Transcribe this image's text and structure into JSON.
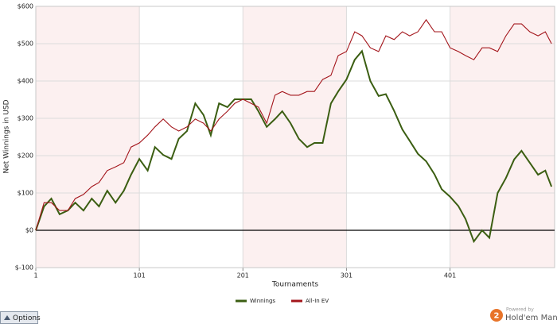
{
  "chart_data": {
    "type": "line",
    "y_label": "Net Winnings in USD",
    "x_label": "Tournaments",
    "x": [
      1,
      9,
      16,
      24,
      32,
      39,
      47,
      55,
      62,
      70,
      78,
      86,
      93,
      101,
      109,
      116,
      124,
      132,
      139,
      147,
      155,
      163,
      170,
      178,
      186,
      193,
      201,
      209,
      216,
      224,
      232,
      239,
      247,
      255,
      263,
      270,
      278,
      286,
      293,
      301,
      309,
      316,
      324,
      332,
      339,
      347,
      355,
      362,
      370,
      378,
      386,
      393,
      401,
      409,
      416,
      424,
      432,
      439,
      447,
      455,
      463,
      470,
      478,
      486,
      493,
      499
    ],
    "series": [
      {
        "name": "Winnings",
        "color": "#3b5e12",
        "values": [
          0,
          64,
          85,
          43,
          53,
          74,
          53,
          85,
          64,
          106,
          74,
          106,
          149,
          191,
          160,
          223,
          202,
          191,
          245,
          266,
          340,
          309,
          255,
          340,
          330,
          351,
          351,
          351,
          319,
          277,
          298,
          319,
          287,
          245,
          223,
          234,
          234,
          340,
          372,
          404,
          457,
          480,
          400,
          360,
          365,
          320,
          270,
          240,
          205,
          185,
          150,
          110,
          90,
          65,
          30,
          -30,
          0,
          -20,
          100,
          140,
          190,
          213,
          181,
          149,
          160,
          117
        ]
      },
      {
        "name": "All-In EV",
        "color": "#a3151b",
        "values": [
          0,
          74,
          74,
          53,
          53,
          85,
          96,
          117,
          128,
          160,
          170,
          181,
          223,
          234,
          255,
          277,
          298,
          277,
          266,
          277,
          298,
          287,
          266,
          298,
          319,
          340,
          351,
          340,
          330,
          287,
          362,
          372,
          362,
          362,
          372,
          372,
          404,
          415,
          468,
          479,
          532,
          521,
          489,
          479,
          521,
          511,
          532,
          521,
          532,
          564,
          532,
          532,
          489,
          479,
          468,
          457,
          489,
          489,
          479,
          521,
          553,
          553,
          532,
          521,
          532,
          500
        ]
      }
    ],
    "xlim": [
      1,
      502
    ],
    "ylim": [
      -100,
      600
    ],
    "xticks": [
      1,
      101,
      201,
      301,
      401
    ],
    "yticks": [
      {
        "value": -100,
        "label": "$-100"
      },
      {
        "value": 0,
        "label": "$0"
      },
      {
        "value": 100,
        "label": "$100"
      },
      {
        "value": 200,
        "label": "$200"
      },
      {
        "value": 300,
        "label": "$300"
      },
      {
        "value": 400,
        "label": "$400"
      },
      {
        "value": 500,
        "label": "$500"
      },
      {
        "value": 600,
        "label": "$600"
      }
    ],
    "grid": true,
    "alternate_bands": true,
    "band_color": "#fcf0f0",
    "zero_line": true,
    "legend": "bottom"
  },
  "ui": {
    "options_button": "Options",
    "powered_by": "Powered by",
    "brand": "Hold'em Manager",
    "logo_badge": "2"
  }
}
